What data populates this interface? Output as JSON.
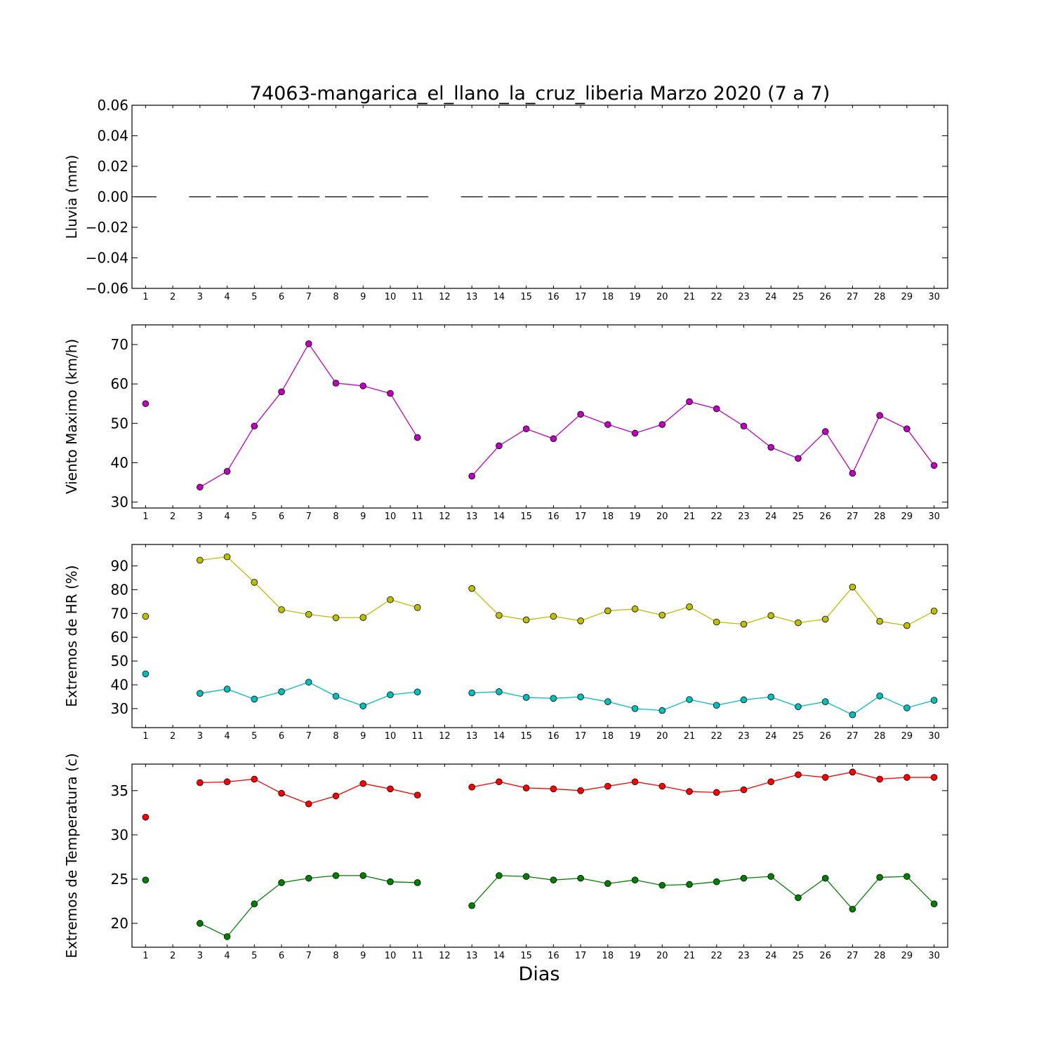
{
  "title": "74063-mangarica_el_llano_la_cruz_liberia Marzo 2020  (7 a 7)",
  "xlabel": "Dias",
  "chart_data": [
    {
      "type": "line",
      "ylabel": "Lluvia (mm)",
      "ylim": [
        -0.06,
        0.06
      ],
      "yticks": [
        0.06,
        0.04,
        0.02,
        0.0,
        -0.02,
        -0.04,
        -0.06
      ],
      "ytick_labels": [
        "0.06",
        "0.04",
        "0.02",
        "0.00",
        "−0.02",
        "−0.04",
        "−0.06"
      ],
      "style": "bar-steps",
      "series": [
        {
          "color": "#000000",
          "marker": false,
          "values": [
            0,
            null,
            0,
            0,
            0,
            0,
            0,
            0,
            0,
            0,
            0,
            null,
            0,
            0,
            0,
            0,
            0,
            0,
            0,
            0,
            0,
            0,
            0,
            0,
            0,
            0,
            0,
            0,
            0,
            0
          ]
        }
      ]
    },
    {
      "type": "line",
      "ylabel": "Viento Maximo (km/h)",
      "ylim": [
        28.5,
        75
      ],
      "yticks": [
        30,
        40,
        50,
        60,
        70
      ],
      "ytick_labels": [
        "30",
        "40",
        "50",
        "60",
        "70"
      ],
      "series": [
        {
          "color": "#bf00bf",
          "marker": true,
          "values": [
            55.0,
            null,
            33.8,
            37.8,
            49.3,
            58.0,
            70.2,
            60.2,
            59.5,
            57.6,
            46.4,
            null,
            36.6,
            44.3,
            48.6,
            46.1,
            52.3,
            49.7,
            47.5,
            49.7,
            55.5,
            53.7,
            49.3,
            43.9,
            41.1,
            47.9,
            37.3,
            52.0,
            48.6,
            39.3
          ]
        }
      ]
    },
    {
      "type": "line",
      "ylabel": "Extremos de HR (%)",
      "ylim": [
        22,
        99
      ],
      "yticks": [
        30,
        40,
        50,
        60,
        70,
        80,
        90
      ],
      "ytick_labels": [
        "30",
        "40",
        "50",
        "60",
        "70",
        "80",
        "90"
      ],
      "series": [
        {
          "color": "#bfbf00",
          "marker": true,
          "values": [
            68.8,
            null,
            92.4,
            93.8,
            83.1,
            71.6,
            69.6,
            68.2,
            68.3,
            75.8,
            72.5,
            null,
            80.5,
            69.2,
            67.3,
            68.8,
            66.9,
            71.1,
            71.9,
            69.3,
            72.8,
            66.4,
            65.5,
            69.1,
            66.1,
            67.6,
            81.1,
            66.7,
            64.9,
            71.0
          ]
        },
        {
          "color": "#00bfbf",
          "marker": true,
          "values": [
            44.6,
            null,
            36.4,
            38.2,
            34.0,
            37.1,
            41.1,
            35.2,
            31.1,
            35.8,
            37.0,
            null,
            36.6,
            37.1,
            34.7,
            34.3,
            34.9,
            32.9,
            30.0,
            29.2,
            33.8,
            31.4,
            33.7,
            34.9,
            30.8,
            32.9,
            27.4,
            35.3,
            30.3,
            33.5
          ]
        }
      ]
    },
    {
      "type": "line",
      "ylabel": "Extremos de Temperatura (c)",
      "ylim": [
        17.3,
        38.0
      ],
      "yticks": [
        20,
        25,
        30,
        35
      ],
      "ytick_labels": [
        "20",
        "25",
        "30",
        "35"
      ],
      "series": [
        {
          "color": "#ff0000",
          "marker": true,
          "values": [
            32.0,
            null,
            35.9,
            36.0,
            36.3,
            34.7,
            33.5,
            34.4,
            35.8,
            35.2,
            34.5,
            null,
            35.4,
            36.0,
            35.3,
            35.2,
            35.0,
            35.5,
            36.0,
            35.5,
            34.9,
            34.8,
            35.1,
            36.0,
            36.8,
            36.5,
            37.1,
            36.3,
            36.5,
            36.5
          ]
        },
        {
          "color": "#008000",
          "marker": true,
          "values": [
            24.9,
            null,
            20.0,
            18.5,
            22.2,
            24.6,
            25.1,
            25.4,
            25.4,
            24.7,
            24.6,
            null,
            22.0,
            25.4,
            25.3,
            24.9,
            25.1,
            24.5,
            24.9,
            24.3,
            24.4,
            24.7,
            25.1,
            25.3,
            22.9,
            25.1,
            21.6,
            25.2,
            25.3,
            22.2
          ]
        }
      ]
    }
  ],
  "x_categories": [
    "1",
    "2",
    "3",
    "4",
    "5",
    "6",
    "7",
    "8",
    "9",
    "10",
    "11",
    "12",
    "13",
    "14",
    "15",
    "16",
    "17",
    "18",
    "19",
    "20",
    "21",
    "22",
    "23",
    "24",
    "25",
    "26",
    "27",
    "28",
    "29",
    "30"
  ]
}
